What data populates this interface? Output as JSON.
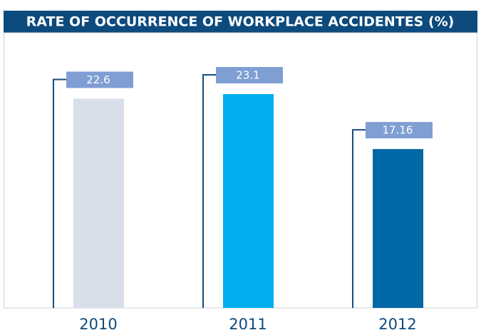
{
  "chart_data": {
    "type": "bar",
    "title": "RATE OF OCCURRENCE OF WORKPLACE ACCIDENTES (%)",
    "categories": [
      "2010",
      "2011",
      "2012"
    ],
    "values": [
      22.6,
      23.1,
      17.16
    ],
    "colors": [
      "#d9dfea",
      "#00aeef",
      "#0068a5"
    ]
  }
}
